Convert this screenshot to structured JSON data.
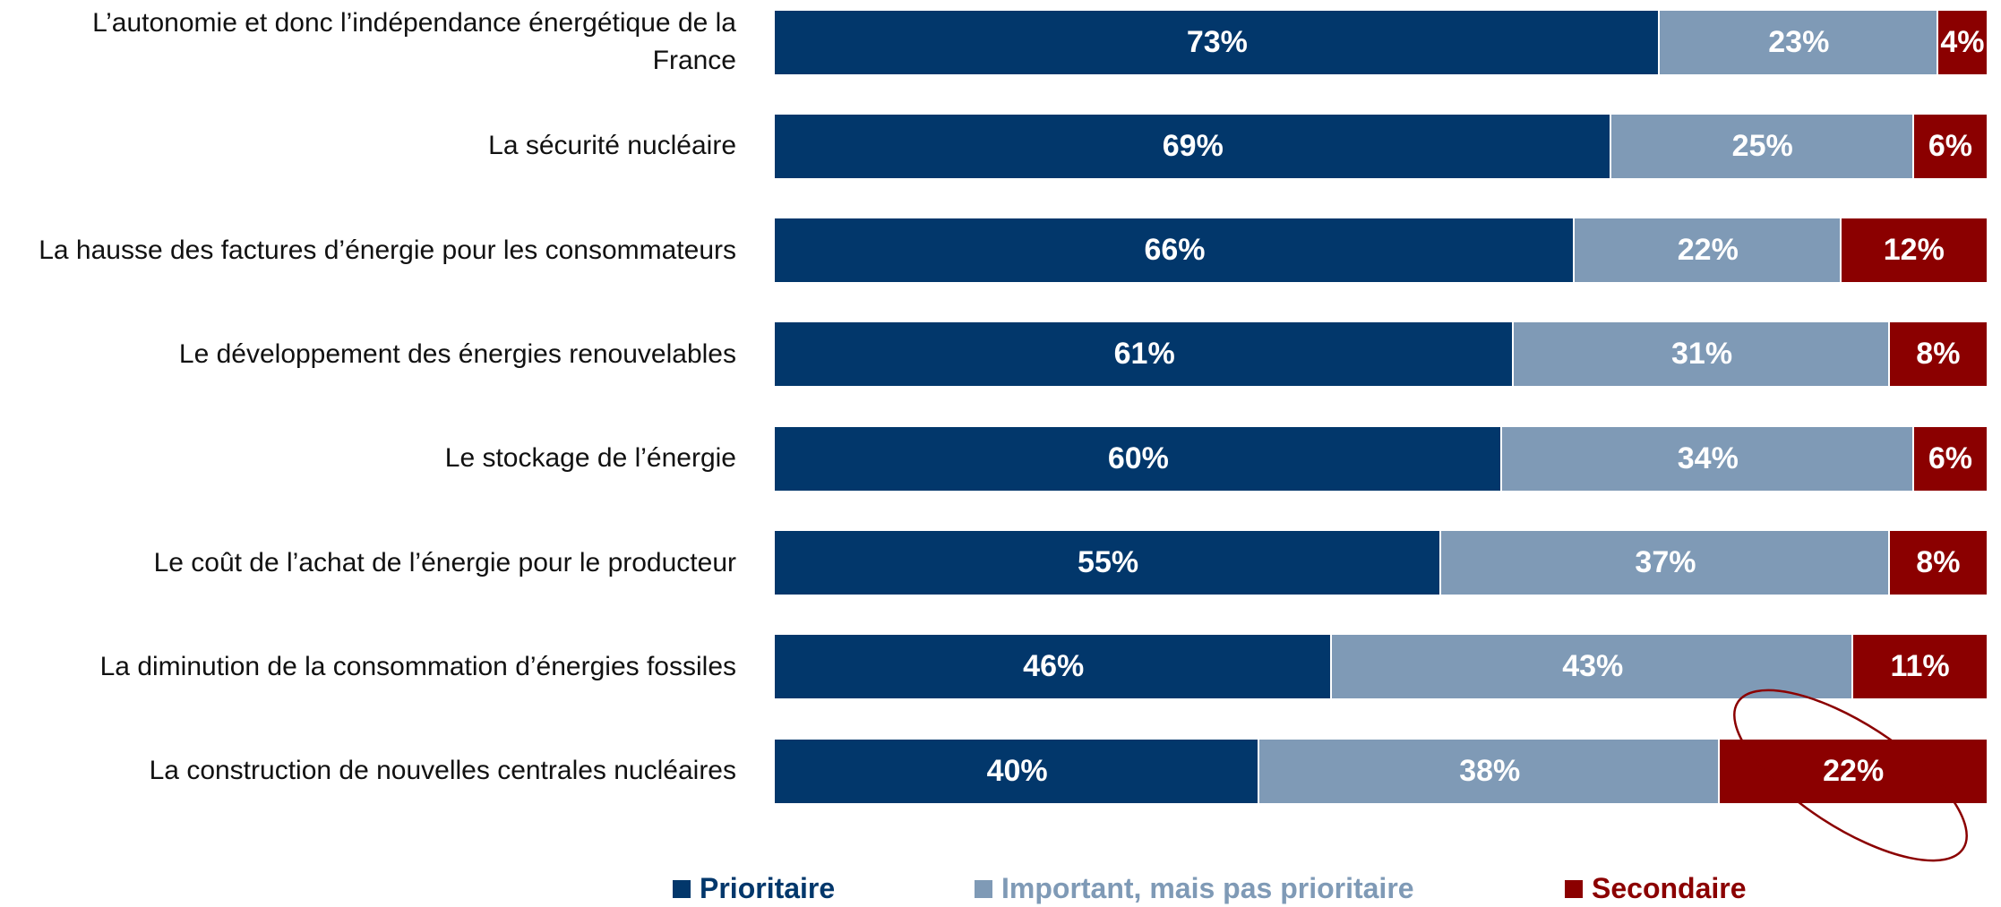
{
  "chart_data": {
    "type": "stacked-barh",
    "categories": [
      "L’autonomie et donc l’indépendance énergétique de la France",
      "La sécurité nucléaire",
      "La hausse des factures d’énergie pour les consommateurs",
      "Le développement des énergies renouvelables",
      "Le stockage de l’énergie",
      "Le coût de l’achat de l’énergie pour le producteur",
      "La diminution de la consommation d’énergies fossiles",
      "La construction de nouvelles centrales nucléaires"
    ],
    "series": [
      {
        "name": "Prioritaire",
        "color": "#02376b",
        "values": [
          73,
          69,
          66,
          61,
          60,
          55,
          46,
          40
        ],
        "value_labels": [
          "73%",
          "69%",
          "66%",
          "61%",
          "60%",
          "55%",
          "46%",
          "40%"
        ]
      },
      {
        "name": "Important, mais pas prioritaire",
        "color": "#7f9ab6",
        "values": [
          23,
          25,
          22,
          31,
          34,
          37,
          43,
          38
        ],
        "value_labels": [
          "23%",
          "25%",
          "22%",
          "31%",
          "34%",
          "37%",
          "43%",
          "38%"
        ]
      },
      {
        "name": "Secondaire",
        "color": "#8b0000",
        "values": [
          4,
          6,
          12,
          8,
          6,
          8,
          11,
          22
        ],
        "value_labels": [
          "4%",
          "6%",
          "12%",
          "8%",
          "6%",
          "8%",
          "11%",
          "22%"
        ]
      }
    ],
    "xlim": [
      0,
      100
    ],
    "legend": "bottom"
  }
}
